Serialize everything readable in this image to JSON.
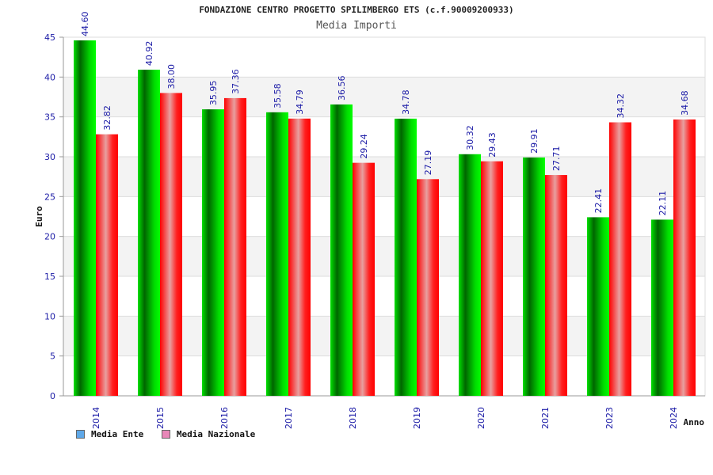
{
  "chart_data": {
    "type": "bar",
    "title": "FONDAZIONE CENTRO PROGETTO SPILIMBERGO ETS (c.f.90009200933)",
    "subtitle": "Media Importi",
    "ylabel": "Euro",
    "xlabel": "Anno",
    "ylim": [
      0,
      45
    ],
    "yticks": [
      "0",
      "5",
      "10",
      "15",
      "20",
      "25",
      "30",
      "35",
      "40",
      "45"
    ],
    "categories": [
      "2014",
      "2015",
      "2016",
      "2017",
      "2018",
      "2019",
      "2020",
      "2021",
      "2023",
      "2024"
    ],
    "series": [
      {
        "name": "Media Ente",
        "color": "#00cc00",
        "values": [
          44.6,
          40.92,
          35.95,
          35.58,
          36.56,
          34.78,
          30.32,
          29.91,
          22.41,
          22.11
        ],
        "labels": [
          "44.60",
          "40.92",
          "35.95",
          "35.58",
          "36.56",
          "34.78",
          "30.32",
          "29.91",
          "22.41",
          "22.11"
        ]
      },
      {
        "name": "Media Nazionale",
        "color": "#ff0000",
        "values": [
          32.82,
          38.0,
          37.36,
          34.79,
          29.24,
          27.19,
          29.43,
          27.71,
          34.32,
          34.68
        ],
        "labels": [
          "32.82",
          "38.00",
          "37.36",
          "34.79",
          "29.24",
          "27.19",
          "29.43",
          "27.71",
          "34.32",
          "34.68"
        ]
      }
    ],
    "grid": true,
    "legend_position": "bottom-left"
  },
  "legend": {
    "ente_label": "Media Ente",
    "ente_swatch": "#5fa8e8",
    "nazionale_label": "Media Nazionale",
    "nazionale_swatch": "#e887b8"
  }
}
